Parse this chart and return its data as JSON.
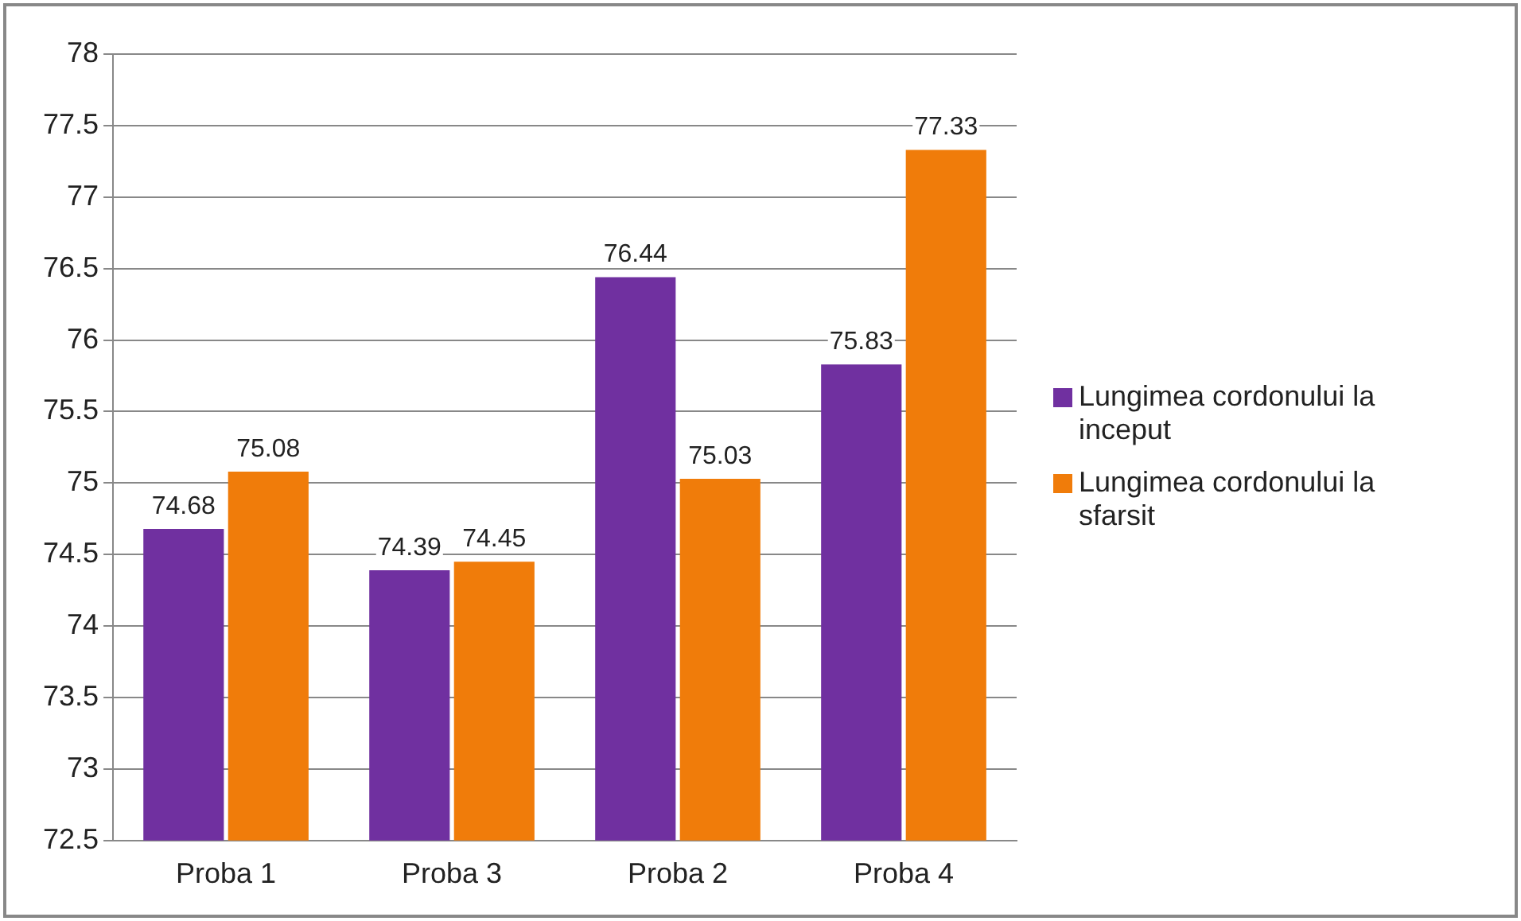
{
  "chart_data": {
    "type": "bar",
    "categories": [
      "Proba 1",
      "Proba 3",
      "Proba 2",
      "Proba 4"
    ],
    "series": [
      {
        "name": "Lungimea cordonului la inceput",
        "color": "#7030a0",
        "values": [
          74.68,
          74.39,
          76.44,
          75.83
        ]
      },
      {
        "name": "Lungimea cordonului la sfarsit",
        "color": "#f07c0a",
        "values": [
          75.08,
          74.45,
          75.03,
          77.33
        ]
      }
    ],
    "ylim": [
      72.5,
      78
    ],
    "yticks": [
      72.5,
      73,
      73.5,
      74,
      74.5,
      75,
      75.5,
      76,
      76.5,
      77,
      77.5,
      78
    ],
    "grid": "y",
    "legend": "right",
    "data_labels": true
  }
}
